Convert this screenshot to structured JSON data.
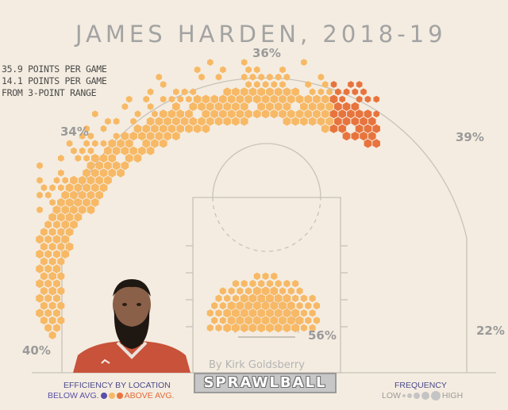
{
  "title": "JAMES HARDEN, 2018-19",
  "stats": [
    "35.9 POINTS PER GAME",
    "14.1 POINTS PER GAME",
    "FROM 3-POINT RANGE"
  ],
  "byline": "By Kirk Goldsberry",
  "brand": "SPRAWLBALL",
  "legend": {
    "efficiency_title": "EFFICIENCY BY LOCATION",
    "below_label": "BELOW AVG.",
    "above_label": "ABOVE AVG.",
    "frequency_title": "FREQUENCY",
    "low_label": "LOW",
    "high_label": "HIGH"
  },
  "colors": {
    "background": "#f4ece0",
    "court_lines": "#c8c2b8",
    "below_avg": "#5a4fa8",
    "avg": "#f7b966",
    "above_avg": "#e8743d"
  },
  "chart_data": {
    "type": "heatmap",
    "title": "JAMES HARDEN, 2018-19",
    "zones": [
      {
        "zone": "left corner three",
        "fg_pct": "40%"
      },
      {
        "zone": "left wing three",
        "fg_pct": "34%"
      },
      {
        "zone": "top of key three",
        "fg_pct": "36%"
      },
      {
        "zone": "right wing three",
        "fg_pct": "39%"
      },
      {
        "zone": "right corner three",
        "fg_pct": "22%"
      },
      {
        "zone": "restricted area",
        "fg_pct": "56%"
      }
    ],
    "encoding": {
      "color": "efficiency by location (below avg. = purple, above avg. = orange)",
      "size": "frequency (low to high)"
    }
  }
}
